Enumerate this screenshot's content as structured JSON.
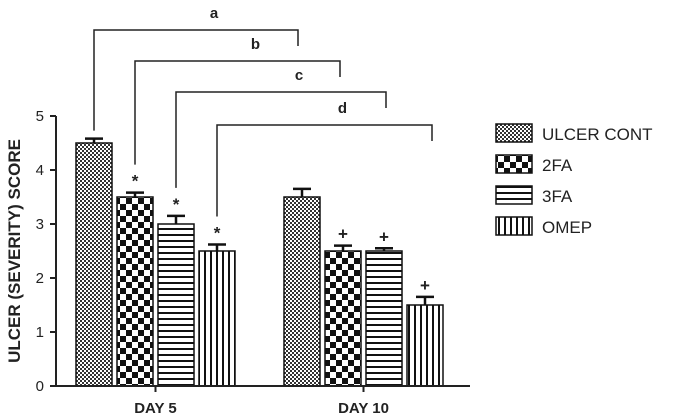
{
  "chart_data": {
    "type": "bar",
    "ylabel": "ULCER (SEVERITY) SCORE",
    "xlabel": "",
    "ylim": [
      0,
      5
    ],
    "yticks": [
      0,
      1,
      2,
      3,
      4,
      5
    ],
    "grid": false,
    "legend_position": "right",
    "categories": [
      "DAY 5",
      "DAY 10"
    ],
    "series": [
      {
        "name": "ULCER CONT",
        "pattern": "fine-checker",
        "values": [
          4.5,
          3.5
        ],
        "errors": [
          0.08,
          0.15
        ],
        "markers": [
          "",
          ""
        ]
      },
      {
        "name": "2FA",
        "pattern": "coarse-checker",
        "values": [
          3.5,
          2.5
        ],
        "errors": [
          0.08,
          0.1
        ],
        "markers": [
          "*",
          "+"
        ]
      },
      {
        "name": "3FA",
        "pattern": "horizontal-lines",
        "values": [
          3.0,
          2.5
        ],
        "errors": [
          0.15,
          0.05
        ],
        "markers": [
          "*",
          "+"
        ]
      },
      {
        "name": "OMEP",
        "pattern": "vertical-lines",
        "values": [
          2.5,
          1.5
        ],
        "errors": [
          0.12,
          0.15
        ],
        "markers": [
          "*",
          "+"
        ]
      }
    ],
    "annotations": [
      {
        "label": "a",
        "from_series": 0,
        "to_series": 0,
        "to_category": 1
      },
      {
        "label": "b",
        "from_series": 1,
        "to_series": 1,
        "to_category": 1
      },
      {
        "label": "c",
        "from_series": 2,
        "to_series": 2,
        "to_category": 1
      },
      {
        "label": "d",
        "from_series": 3,
        "to_series": 3,
        "to_category": 1
      }
    ],
    "colors": {
      "bar_fill": "#000000",
      "bar_bg": "#ffffff",
      "axis": "#222222"
    }
  }
}
